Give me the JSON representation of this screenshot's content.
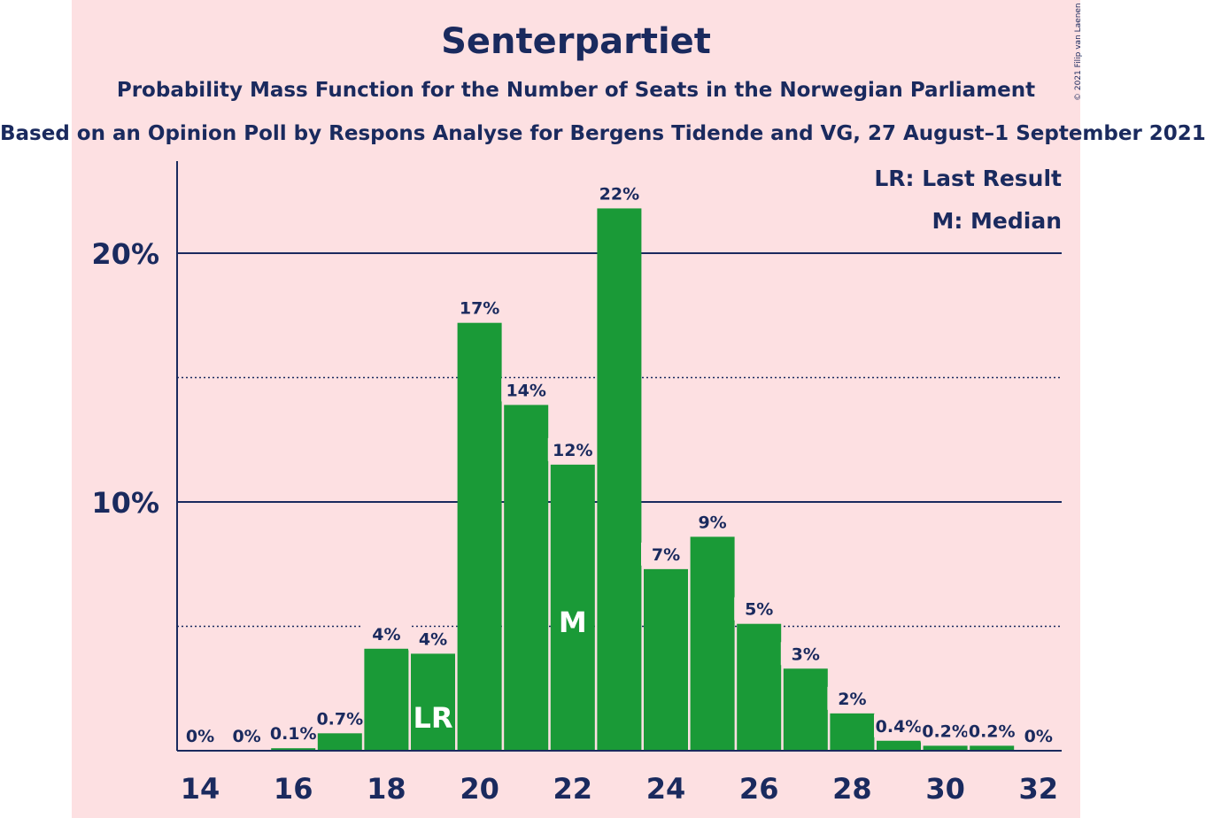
{
  "chart_data": {
    "type": "bar",
    "title": "Senterpartiet",
    "subtitle": "Probability Mass Function for the Number of Seats in the Norwegian Parliament",
    "subtitle2": "Based on an Opinion Poll by Respons Analyse for Bergens Tidende and VG, 27 August–1 September 2021",
    "credit": "© 2021 Filip van Laenen",
    "legend": [
      "LR: Last Result",
      "M: Median"
    ],
    "legend_position": "top-right",
    "x": [
      14,
      15,
      16,
      17,
      18,
      19,
      20,
      21,
      22,
      23,
      24,
      25,
      26,
      27,
      28,
      29,
      30,
      31,
      32
    ],
    "values": [
      0,
      0,
      0.1,
      0.7,
      4.1,
      3.9,
      17.2,
      13.9,
      11.5,
      21.8,
      7.3,
      8.6,
      5.1,
      3.3,
      1.5,
      0.4,
      0.2,
      0.2,
      0
    ],
    "labels": [
      "0%",
      "0%",
      "0.1%",
      "0.7%",
      "4%",
      "4%",
      "17%",
      "14%",
      "12%",
      "22%",
      "7%",
      "9%",
      "5%",
      "3%",
      "2%",
      "0.4%",
      "0.2%",
      "0.2%",
      "0%"
    ],
    "markers": [
      {
        "x": 19,
        "text": "LR"
      },
      {
        "x": 22,
        "text": "M"
      }
    ],
    "x_ticks": [
      "14",
      "16",
      "18",
      "20",
      "22",
      "24",
      "26",
      "28",
      "30",
      "32"
    ],
    "y_ticks": [
      {
        "value": 10,
        "label": "10%"
      },
      {
        "value": 20,
        "label": "20%"
      }
    ],
    "minor_gridlines": [
      5,
      15
    ],
    "ylim": [
      0,
      23.5
    ],
    "colors": {
      "bar": "#1a9a37",
      "text": "#1a2a5e",
      "background": "#fde0e2"
    }
  }
}
